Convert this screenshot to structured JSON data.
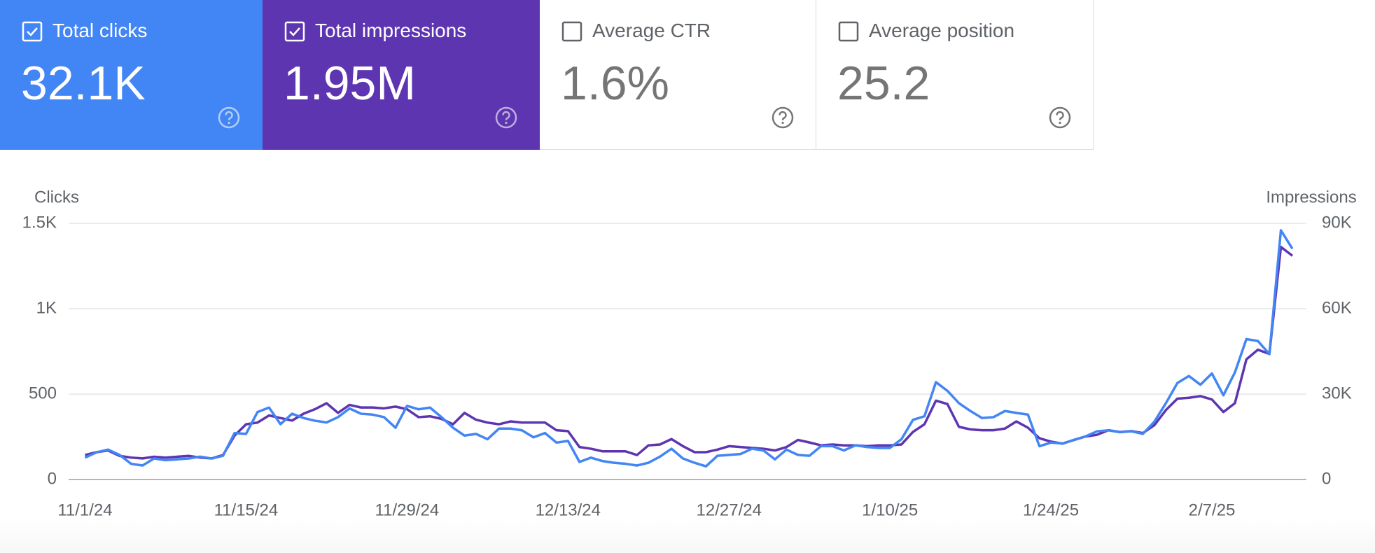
{
  "cards": [
    {
      "label": "Total clicks",
      "value": "32.1K",
      "checked": true,
      "color": "#4285f4"
    },
    {
      "label": "Total impressions",
      "value": "1.95M",
      "checked": true,
      "color": "#5e35b1"
    },
    {
      "label": "Average CTR",
      "value": "1.6%",
      "checked": false,
      "color": "#ffffff"
    },
    {
      "label": "Average position",
      "value": "25.2",
      "checked": false,
      "color": "#ffffff"
    }
  ],
  "chart_data": {
    "type": "line",
    "y_label": "Clicks",
    "y2_label": "Impressions",
    "grid": true,
    "categories": [
      "11/1/24",
      null,
      null,
      null,
      null,
      null,
      null,
      null,
      null,
      null,
      null,
      null,
      null,
      null,
      "11/15/24",
      null,
      null,
      null,
      null,
      null,
      null,
      null,
      null,
      null,
      null,
      null,
      null,
      null,
      "11/29/24",
      null,
      null,
      null,
      null,
      null,
      null,
      null,
      null,
      null,
      null,
      null,
      null,
      null,
      "12/13/24",
      null,
      null,
      null,
      null,
      null,
      null,
      null,
      null,
      null,
      null,
      null,
      null,
      null,
      "12/27/24",
      null,
      null,
      null,
      null,
      null,
      null,
      null,
      null,
      null,
      null,
      null,
      null,
      null,
      "1/10/25",
      null,
      null,
      null,
      null,
      null,
      null,
      null,
      null,
      null,
      null,
      null,
      null,
      null,
      "1/24/25",
      null,
      null,
      null,
      null,
      null,
      null,
      null,
      null,
      null,
      null,
      null,
      null,
      null,
      "2/7/25",
      null,
      null,
      null,
      null,
      null,
      null,
      null
    ],
    "ylim": [
      0,
      1500
    ],
    "yticks": [
      0,
      500,
      {
        "value": 1000,
        "label": "1K"
      },
      {
        "value": 1500,
        "label": "1.5K"
      }
    ],
    "y2lim": [
      0,
      90000
    ],
    "y2ticks": [
      0,
      {
        "value": 30000,
        "label": "30K"
      },
      {
        "value": 60000,
        "label": "60K"
      },
      {
        "value": 90000,
        "label": "90K"
      }
    ],
    "series": [
      {
        "name": "Clicks",
        "color": "#4285f4",
        "values": [
          128,
          159,
          175,
          144,
          92,
          82,
          123,
          113,
          118,
          123,
          134,
          123,
          139,
          272,
          267,
          395,
          421,
          324,
          385,
          360,
          344,
          334,
          365,
          416,
          385,
          380,
          365,
          303,
          431,
          411,
          421,
          365,
          303,
          257,
          267,
          236,
          298,
          298,
          288,
          247,
          272,
          216,
          226,
          103,
          128,
          108,
          98,
          92,
          82,
          98,
          134,
          180,
          123,
          98,
          77,
          139,
          144,
          149,
          180,
          170,
          118,
          175,
          144,
          139,
          195,
          195,
          170,
          200,
          190,
          185,
          185,
          236,
          349,
          370,
          570,
          519,
          447,
          401,
          360,
          365,
          401,
          390,
          380,
          195,
          216,
          211,
          231,
          252,
          282,
          288,
          277,
          282,
          267,
          339,
          447,
          565,
          606,
          555,
          621,
          493,
          627,
          822,
          811,
          734,
          1459,
          1351
        ]
      },
      {
        "name": "Impressions",
        "color": "#5e35b1",
        "axis": "y2",
        "values": [
          8600,
          9600,
          10200,
          8300,
          7700,
          7400,
          8000,
          7700,
          8000,
          8300,
          7700,
          7400,
          8600,
          15400,
          19400,
          20000,
          22500,
          21600,
          20700,
          23100,
          24700,
          26800,
          23400,
          26200,
          25300,
          25300,
          25000,
          25600,
          24700,
          21900,
          22200,
          21300,
          19400,
          23400,
          21000,
          20000,
          19400,
          20400,
          20000,
          20000,
          20000,
          17300,
          17000,
          11400,
          10800,
          9900,
          9900,
          9900,
          8600,
          12000,
          12300,
          14200,
          11700,
          9600,
          9600,
          10500,
          11700,
          11400,
          11100,
          10800,
          10200,
          11400,
          13900,
          13000,
          12000,
          12300,
          12000,
          12000,
          11700,
          12000,
          12000,
          12300,
          16700,
          19400,
          27700,
          26500,
          18500,
          17600,
          17300,
          17300,
          17900,
          20400,
          18200,
          14500,
          13300,
          12600,
          13900,
          15100,
          15700,
          17300,
          16700,
          17000,
          16300,
          19100,
          24400,
          28400,
          28700,
          29300,
          28100,
          23700,
          26800,
          42200,
          45600,
          44100,
          81700,
          78600
        ]
      }
    ]
  }
}
